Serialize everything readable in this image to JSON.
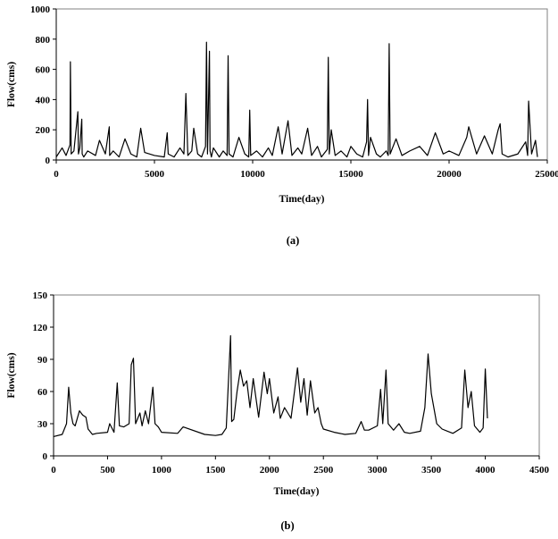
{
  "chart_data": [
    {
      "type": "line",
      "caption": "(a)",
      "xlabel": "Time(day)",
      "ylabel": "Flow(cms)",
      "xlim": [
        0,
        25000
      ],
      "ylim": [
        0,
        1000
      ],
      "xticks": [
        0,
        5000,
        10000,
        15000,
        20000,
        25000
      ],
      "yticks": [
        0,
        200,
        400,
        600,
        800,
        1000
      ],
      "grid": false,
      "series": [
        {
          "x": [
            0,
            300,
            500,
            700,
            720,
            760,
            900,
            1100,
            1130,
            1200,
            1300,
            1320,
            1400,
            1600,
            2000,
            2200,
            2500,
            2700,
            2720,
            2900,
            3200,
            3500,
            3800,
            4100,
            4300,
            4500,
            5000,
            5500,
            5650,
            5700,
            6000,
            6300,
            6500,
            6600,
            6700,
            6900,
            7000,
            7200,
            7400,
            7600,
            7650,
            7700,
            7800,
            7830,
            7900,
            8000,
            8300,
            8500,
            8700,
            8750,
            8800,
            9000,
            9300,
            9600,
            9800,
            9850,
            9900,
            10200,
            10500,
            10800,
            11000,
            11300,
            11500,
            11800,
            12000,
            12300,
            12500,
            12800,
            13000,
            13300,
            13500,
            13800,
            13850,
            13900,
            14000,
            14200,
            14500,
            14800,
            15000,
            15300,
            15600,
            15800,
            15850,
            15900,
            16000,
            16300,
            16500,
            16800,
            16900,
            16950,
            17000,
            17300,
            17600,
            18000,
            18500,
            18900,
            19300,
            19700,
            20000,
            20500,
            20900,
            21000,
            21400,
            21800,
            22200,
            22500,
            22600,
            22700,
            23000,
            23500,
            23900,
            24000,
            24050,
            24200,
            24400,
            24500
          ],
          "y": [
            20,
            80,
            30,
            100,
            650,
            40,
            60,
            320,
            40,
            80,
            270,
            40,
            20,
            60,
            30,
            130,
            40,
            220,
            30,
            60,
            20,
            140,
            40,
            20,
            210,
            50,
            30,
            20,
            180,
            40,
            20,
            80,
            40,
            440,
            30,
            60,
            210,
            40,
            20,
            90,
            780,
            40,
            720,
            60,
            20,
            80,
            20,
            60,
            30,
            690,
            40,
            20,
            150,
            40,
            20,
            330,
            30,
            60,
            20,
            80,
            30,
            220,
            40,
            260,
            30,
            80,
            40,
            210,
            30,
            90,
            20,
            70,
            680,
            40,
            200,
            30,
            60,
            20,
            90,
            40,
            20,
            120,
            400,
            30,
            150,
            40,
            20,
            60,
            30,
            770,
            40,
            140,
            30,
            60,
            90,
            30,
            180,
            40,
            60,
            30,
            150,
            220,
            40,
            160,
            40,
            200,
            240,
            40,
            20,
            40,
            120,
            30,
            390,
            40,
            130,
            20
          ]
        }
      ]
    },
    {
      "type": "line",
      "caption": "(b)",
      "xlabel": "Time(day)",
      "ylabel": "Flow(cms)",
      "xlim": [
        0,
        4500
      ],
      "ylim": [
        0,
        150
      ],
      "xticks": [
        0,
        500,
        1000,
        1500,
        2000,
        2500,
        3000,
        3500,
        4000,
        4500
      ],
      "yticks": [
        0,
        30,
        60,
        90,
        120,
        150
      ],
      "grid": false,
      "series": [
        {
          "x": [
            0,
            80,
            120,
            140,
            160,
            180,
            200,
            240,
            270,
            300,
            320,
            360,
            400,
            500,
            520,
            560,
            590,
            610,
            650,
            700,
            720,
            740,
            760,
            800,
            820,
            850,
            880,
            920,
            940,
            970,
            1000,
            1150,
            1200,
            1400,
            1500,
            1560,
            1600,
            1640,
            1650,
            1670,
            1700,
            1730,
            1760,
            1790,
            1820,
            1850,
            1900,
            1950,
            1980,
            2000,
            2040,
            2080,
            2100,
            2140,
            2200,
            2260,
            2290,
            2320,
            2350,
            2380,
            2420,
            2450,
            2480,
            2500,
            2600,
            2700,
            2800,
            2850,
            2880,
            2920,
            3000,
            3030,
            3050,
            3080,
            3100,
            3150,
            3200,
            3250,
            3300,
            3400,
            3440,
            3470,
            3500,
            3550,
            3600,
            3650,
            3700,
            3780,
            3810,
            3840,
            3870,
            3900,
            3950,
            3980,
            4000,
            4020
          ],
          "y": [
            18,
            20,
            30,
            64,
            40,
            30,
            28,
            42,
            38,
            36,
            25,
            20,
            21,
            22,
            30,
            22,
            68,
            28,
            27,
            30,
            85,
            91,
            30,
            40,
            28,
            42,
            30,
            64,
            30,
            27,
            22,
            21,
            27,
            20,
            19,
            20,
            26,
            112,
            32,
            34,
            60,
            80,
            65,
            70,
            45,
            72,
            36,
            78,
            58,
            72,
            40,
            55,
            35,
            45,
            35,
            82,
            50,
            72,
            38,
            70,
            40,
            45,
            30,
            25,
            22,
            20,
            21,
            32,
            24,
            24,
            28,
            62,
            30,
            80,
            30,
            24,
            30,
            22,
            21,
            23,
            45,
            95,
            58,
            30,
            25,
            23,
            21,
            26,
            80,
            45,
            60,
            28,
            22,
            26,
            81,
            35
          ]
        }
      ]
    }
  ]
}
